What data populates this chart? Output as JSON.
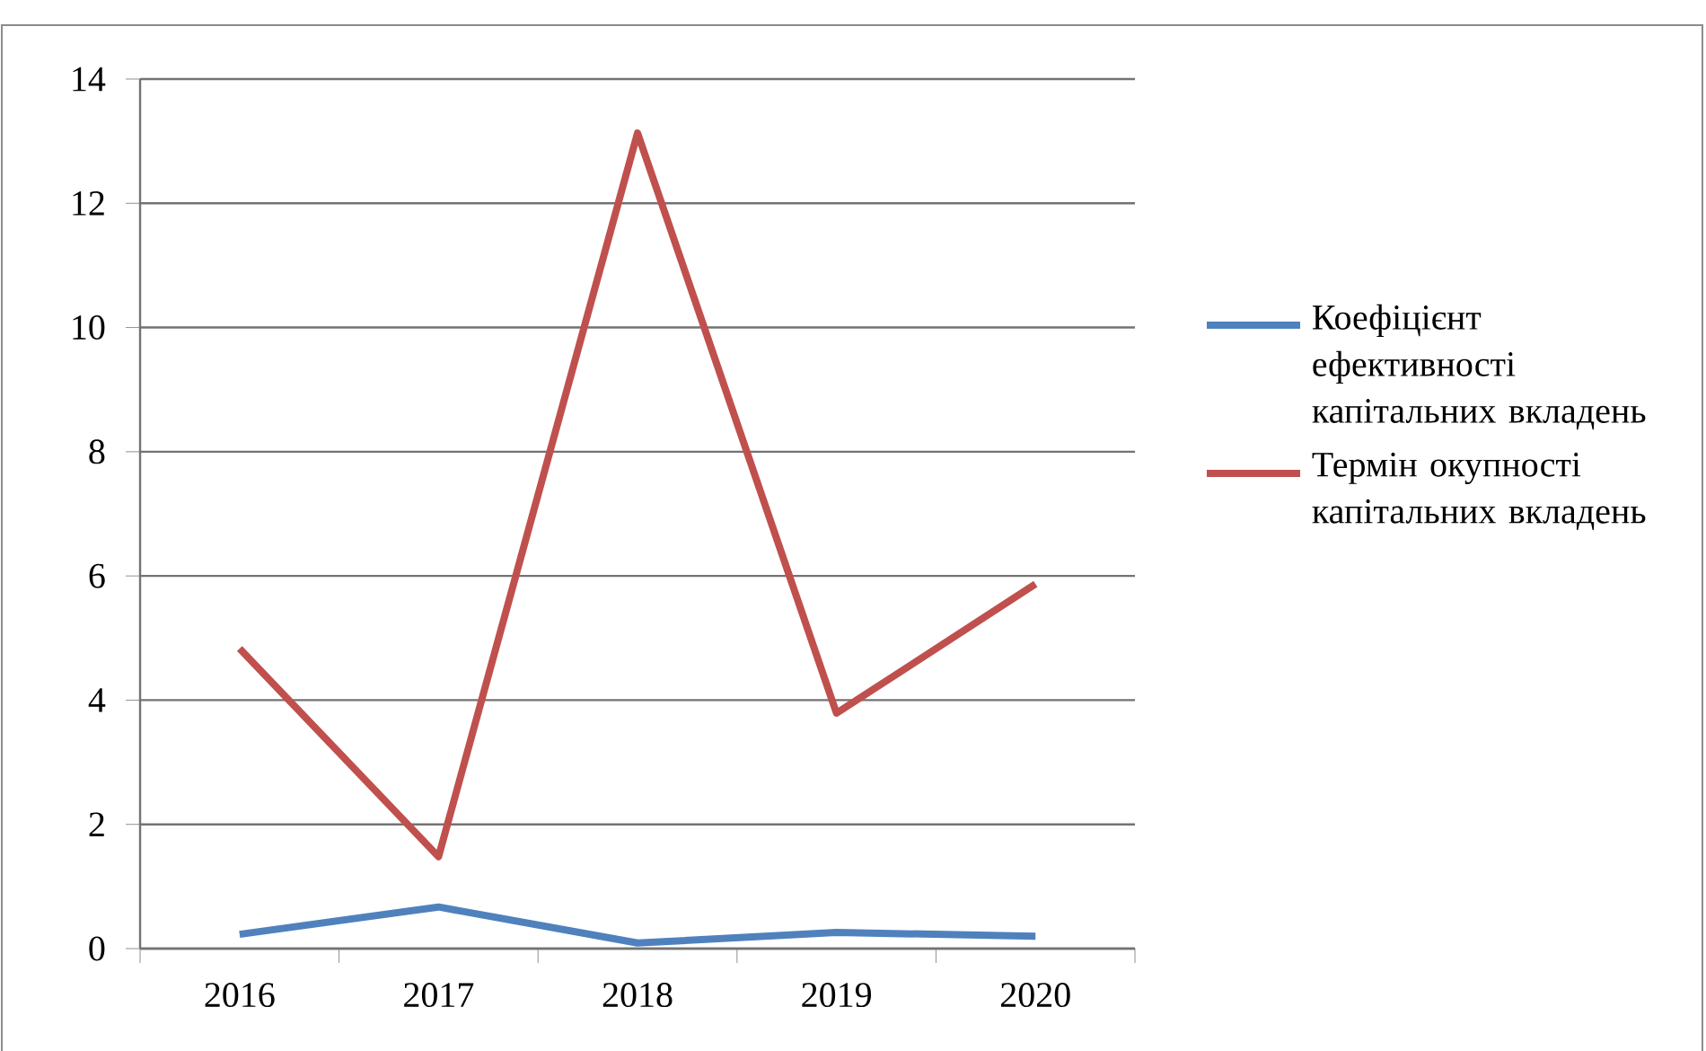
{
  "chart_data": {
    "type": "line",
    "categories": [
      "2016",
      "2017",
      "2018",
      "2019",
      "2020"
    ],
    "series": [
      {
        "name": "Коефіцієнт ефективності капітальних вкладень",
        "color": "#4f81bd",
        "values": [
          0.23,
          0.67,
          0.09,
          0.26,
          0.2
        ]
      },
      {
        "name": "Термін окупності капітальних вкладень",
        "color": "#c0504d",
        "values": [
          4.83,
          1.48,
          13.13,
          3.79,
          5.87
        ]
      }
    ],
    "ylim": [
      0,
      14
    ],
    "yticks": [
      0,
      2,
      4,
      6,
      8,
      10,
      12,
      14
    ],
    "grid": "y",
    "legend": "right",
    "marker": "none",
    "line_style": "solid"
  }
}
